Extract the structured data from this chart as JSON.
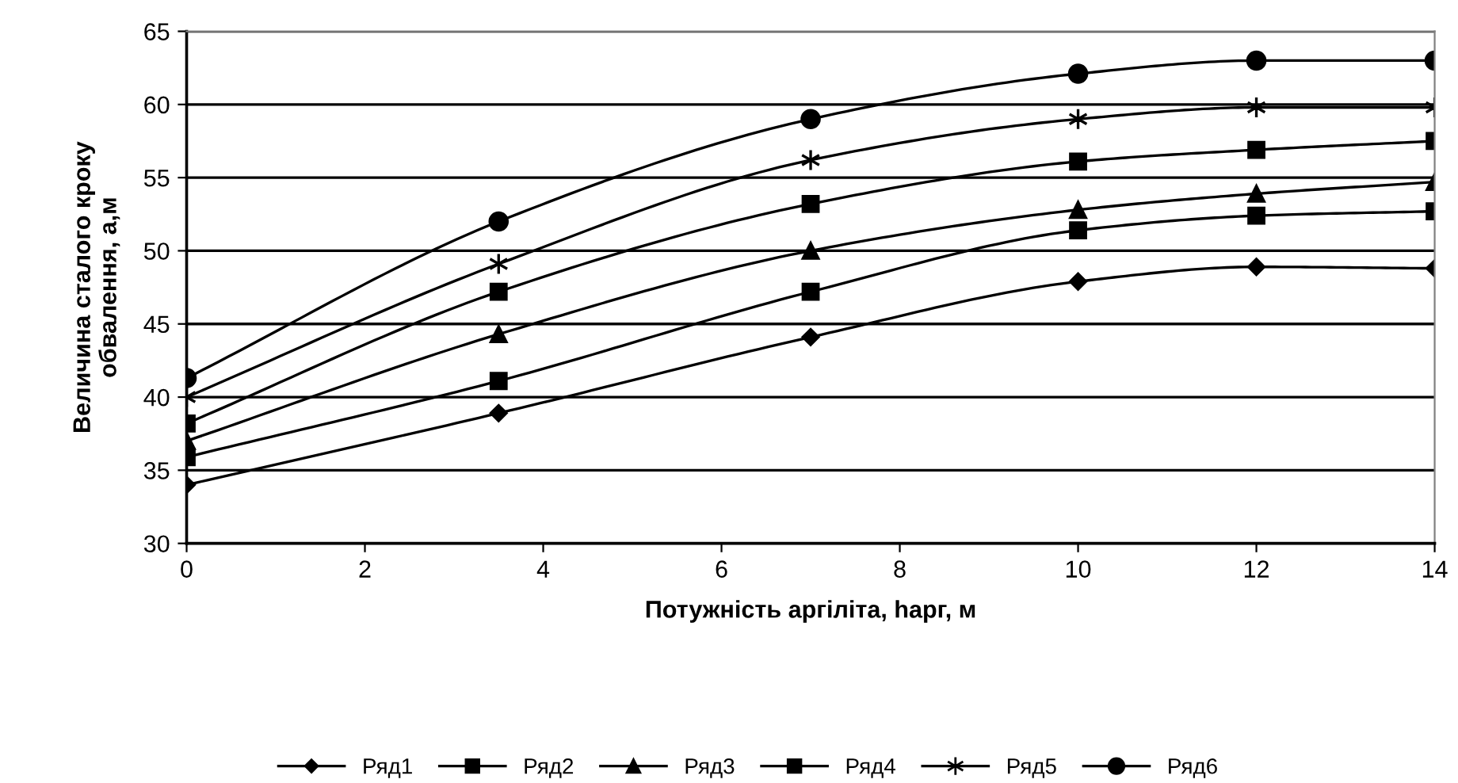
{
  "chart_data": {
    "type": "line",
    "xlabel": "Потужність аргіліта, hарг, м",
    "ylabel": "Величина сталого кроку\nобвалення, a,м",
    "x": [
      0,
      3.5,
      7,
      10,
      12,
      14
    ],
    "series": [
      {
        "name": "Ряд1",
        "color": "#000000",
        "marker": "diamond",
        "values": [
          34,
          38.9,
          44.1,
          47.9,
          48.9,
          48.8
        ]
      },
      {
        "name": "Ряд2",
        "color": "#000000",
        "marker": "square",
        "values": [
          35.9,
          41.1,
          47.2,
          51.4,
          52.4,
          52.7
        ]
      },
      {
        "name": "Ряд3",
        "color": "#000000",
        "marker": "triangle",
        "values": [
          37,
          44.3,
          50,
          52.8,
          53.9,
          54.7
        ]
      },
      {
        "name": "Ряд4",
        "color": "#000000",
        "marker": "square",
        "values": [
          38.2,
          47.2,
          53.2,
          56.1,
          56.9,
          57.5
        ]
      },
      {
        "name": "Ряд5",
        "color": "#000000",
        "marker": "cross",
        "values": [
          40,
          49.1,
          56.2,
          59,
          59.8,
          59.8
        ]
      },
      {
        "name": "Ряд6",
        "color": "#000000",
        "marker": "circle",
        "values": [
          41.3,
          52,
          59,
          62.1,
          63,
          63
        ]
      }
    ],
    "xlim": [
      0,
      14
    ],
    "ylim": [
      30,
      65
    ],
    "xticks": [
      0,
      2,
      4,
      6,
      8,
      10,
      12,
      14
    ],
    "yticks": [
      30,
      35,
      40,
      45,
      50,
      55,
      60,
      65
    ],
    "grid": "y",
    "legend": "bottom",
    "line_style": "solid"
  }
}
